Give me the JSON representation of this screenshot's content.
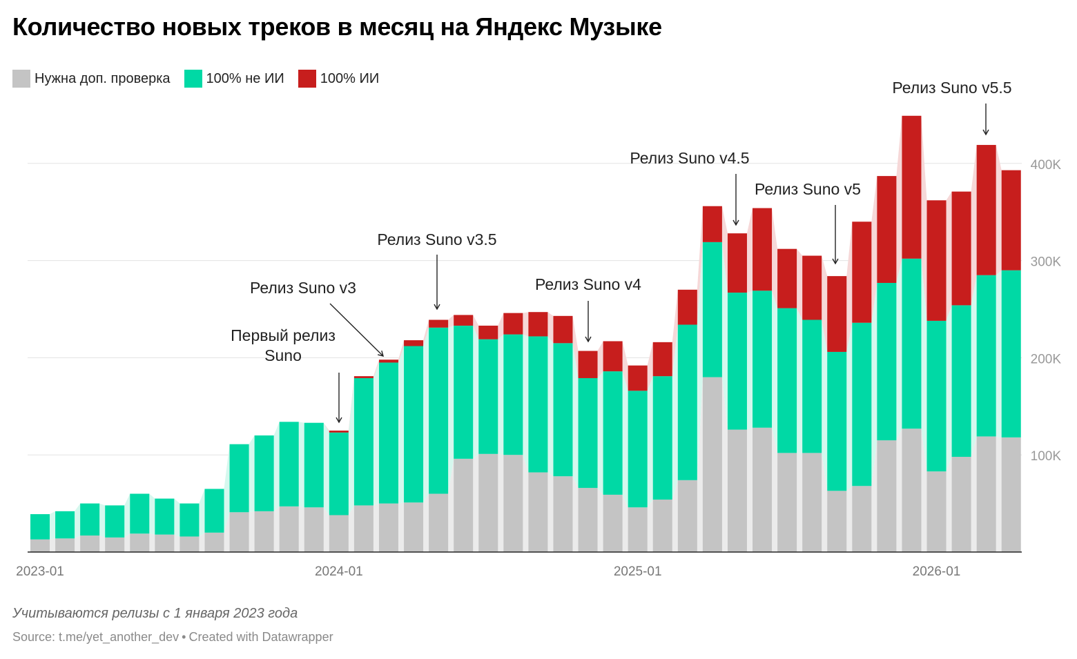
{
  "title": "Количество новых треков в месяц на Яндекс Музыке",
  "legend": [
    {
      "label": "Нужна доп. проверка",
      "color": "#c4c4c4"
    },
    {
      "label": "100% не ИИ",
      "color": "#00d9a5"
    },
    {
      "label": "100% ИИ",
      "color": "#c71e1d"
    }
  ],
  "note": "Учитываются релизы с 1 января 2023 года",
  "source": {
    "text": "Source: t.me/yet_another_dev",
    "separator": "•",
    "created": "Created with Datawrapper"
  },
  "chart_data": {
    "type": "bar",
    "stacked": true,
    "categories": [
      "2023-01",
      "2023-02",
      "2023-03",
      "2023-04",
      "2023-05",
      "2023-06",
      "2023-07",
      "2023-08",
      "2023-09",
      "2023-10",
      "2023-11",
      "2023-12",
      "2024-01",
      "2024-02",
      "2024-03",
      "2024-04",
      "2024-05",
      "2024-06",
      "2024-07",
      "2024-08",
      "2024-09",
      "2024-10",
      "2024-11",
      "2024-12",
      "2025-01",
      "2025-02",
      "2025-03",
      "2025-04",
      "2025-05",
      "2025-06",
      "2025-07",
      "2025-08",
      "2025-09",
      "2025-10",
      "2025-11",
      "2025-12",
      "2026-01",
      "2026-02",
      "2026-03",
      "2026-04"
    ],
    "series": [
      {
        "name": "Нужна доп. проверка",
        "color": "#c4c4c4",
        "values": [
          13000,
          14000,
          17000,
          15000,
          19000,
          18000,
          16000,
          20000,
          41000,
          42000,
          47000,
          46000,
          38000,
          48000,
          50000,
          51000,
          60000,
          96000,
          101000,
          100000,
          82000,
          78000,
          66000,
          59000,
          46000,
          54000,
          74000,
          180000,
          126000,
          128000,
          102000,
          102000,
          63000,
          68000,
          115000,
          127000,
          83000,
          98000,
          119000,
          118000
        ]
      },
      {
        "name": "100% не ИИ",
        "color": "#00d9a5",
        "values": [
          26000,
          28000,
          33000,
          33000,
          41000,
          37000,
          34000,
          45000,
          70000,
          78000,
          87000,
          87000,
          85000,
          131000,
          145000,
          161000,
          171000,
          137000,
          118000,
          124000,
          140000,
          137000,
          113000,
          127000,
          120000,
          127000,
          160000,
          139000,
          141000,
          141000,
          149000,
          137000,
          143000,
          168000,
          162000,
          175000,
          155000,
          156000,
          166000,
          172000
        ]
      },
      {
        "name": "100% ИИ",
        "color": "#c71e1d",
        "values": [
          0,
          0,
          0,
          0,
          0,
          0,
          0,
          0,
          0,
          0,
          0,
          0,
          2000,
          2000,
          3000,
          6000,
          8000,
          11000,
          14000,
          22000,
          25000,
          28000,
          28000,
          31000,
          26000,
          35000,
          36000,
          37000,
          61000,
          85000,
          61000,
          66000,
          78000,
          104000,
          110000,
          147000,
          124000,
          117000,
          134000,
          103000
        ]
      }
    ],
    "xticks": [
      "2023-01",
      "2024-01",
      "2025-01",
      "2026-01"
    ],
    "yticks": [
      100000,
      200000,
      300000,
      400000
    ],
    "ytick_labels": [
      "100K",
      "200K",
      "300K",
      "400K"
    ],
    "ylim": [
      0,
      450000
    ],
    "grid": true,
    "legend_position": "top-left",
    "annotations": [
      {
        "text": [
          "Первый релиз",
          "Suno"
        ],
        "category": "2023-12"
      },
      {
        "text": [
          "Релиз Suno v3"
        ],
        "category": "2024-02"
      },
      {
        "text": [
          "Релиз Suno v3.5"
        ],
        "category": "2024-05"
      },
      {
        "text": [
          "Релиз Suno v4"
        ],
        "category": "2024-11"
      },
      {
        "text": [
          "Релиз Suno v4.5"
        ],
        "category": "2025-05"
      },
      {
        "text": [
          "Релиз Suno v5"
        ],
        "category": "2025-09"
      },
      {
        "text": [
          "Релиз Suno v5.5"
        ],
        "category": "2026-03"
      }
    ]
  }
}
